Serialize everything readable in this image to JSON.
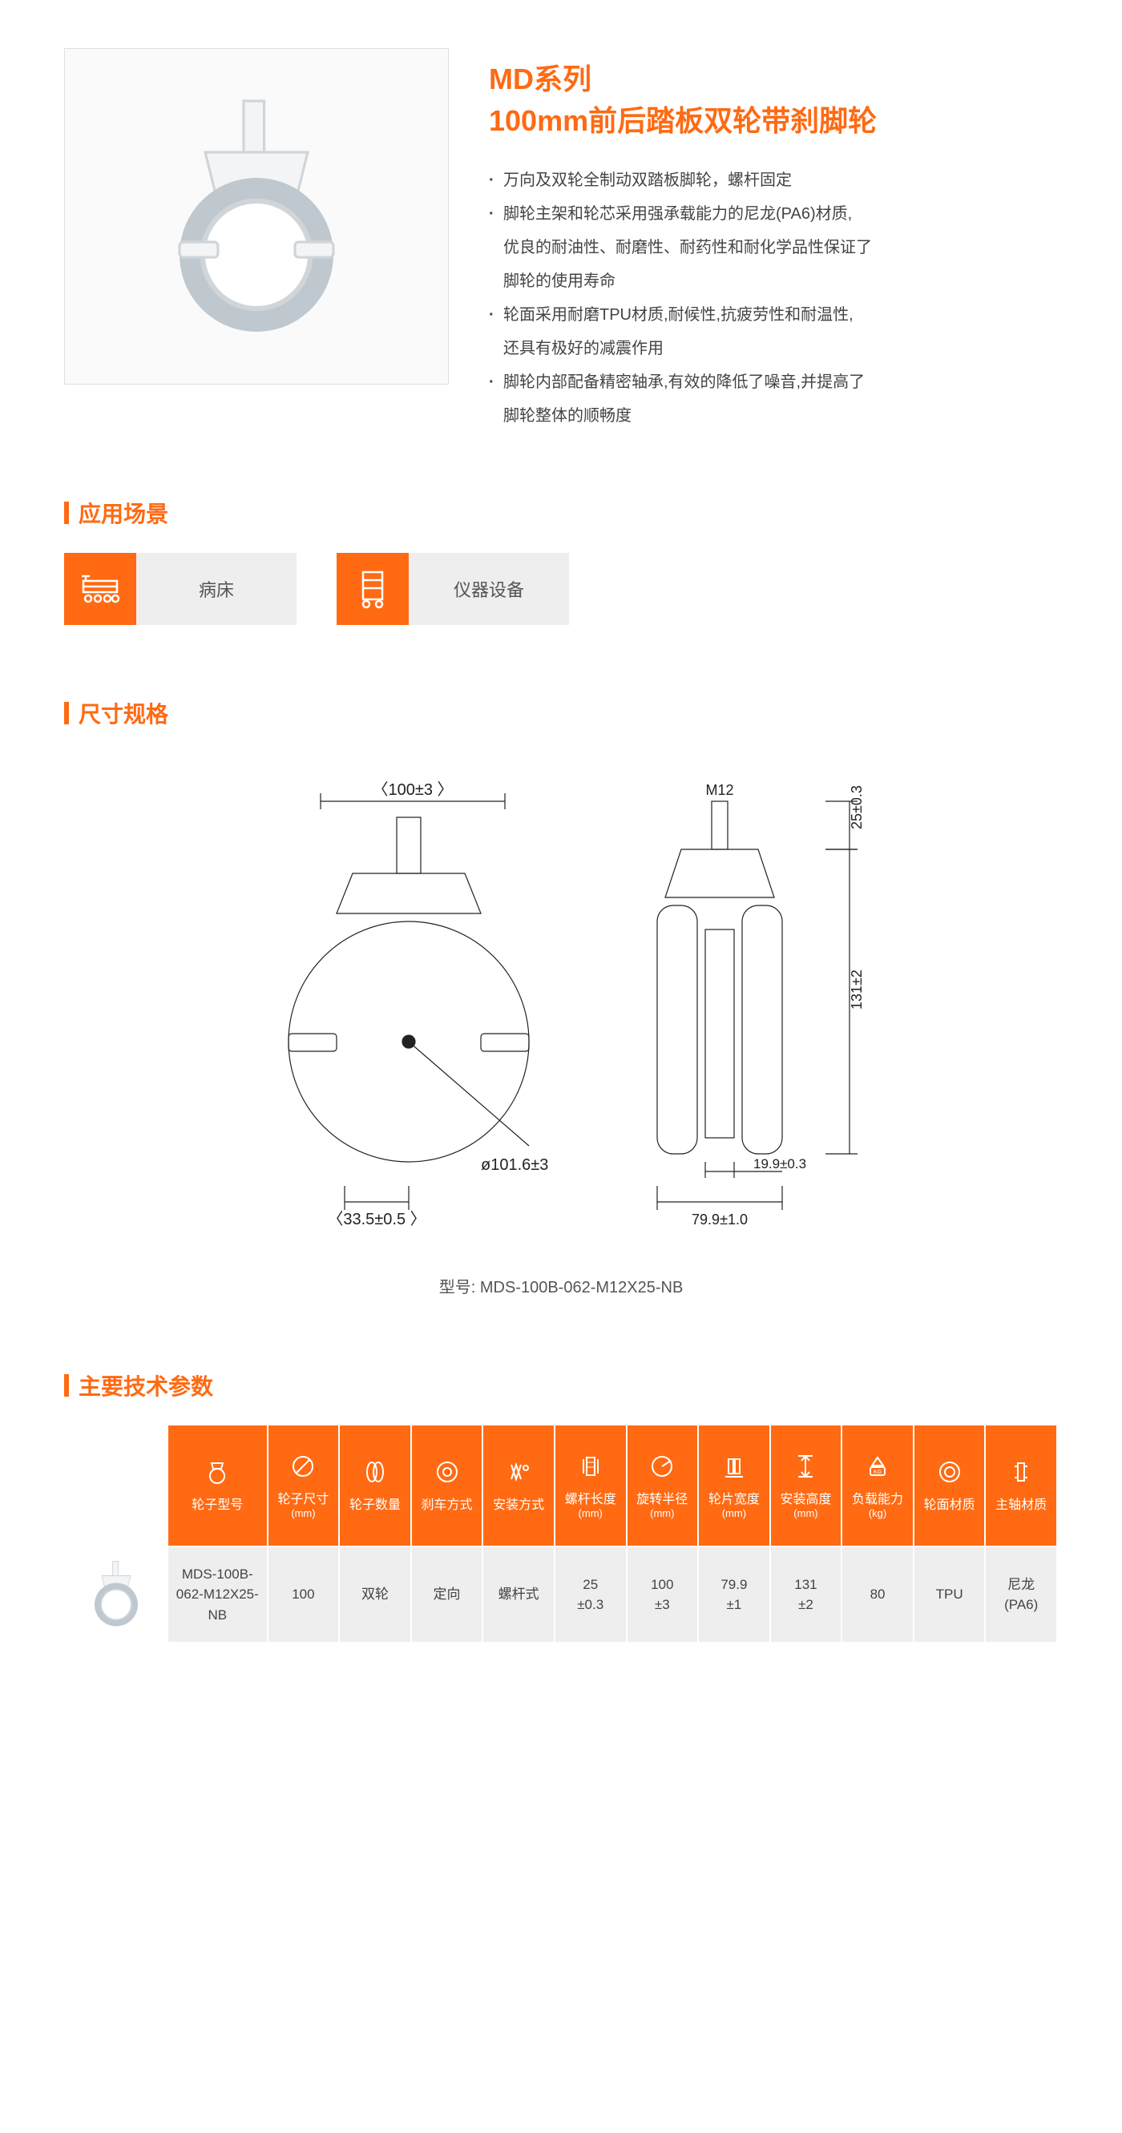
{
  "header": {
    "series": "MD系列",
    "name": "100mm前后踏板双轮带刹脚轮",
    "bullets": [
      {
        "main": "万向及双轮全制动双踏板脚轮，螺杆固定"
      },
      {
        "main": "脚轮主架和轮芯采用强承载能力的尼龙(PA6)材质,",
        "sub": [
          "优良的耐油性、耐磨性、耐药性和耐化学品性保证了",
          "脚轮的使用寿命"
        ]
      },
      {
        "main": "轮面采用耐磨TPU材质,耐候性,抗疲劳性和耐温性,",
        "sub": [
          "还具有极好的减震作用"
        ]
      },
      {
        "main": "脚轮内部配备精密轴承,有效的降低了噪音,并提高了",
        "sub": [
          "脚轮整体的顺畅度"
        ]
      }
    ]
  },
  "sections": {
    "apps": "应用场景",
    "dims": "尺寸规格",
    "specs": "主要技术参数"
  },
  "applications": [
    {
      "icon": "bed-icon",
      "label": "病床"
    },
    {
      "icon": "equipment-icon",
      "label": "仪器设备"
    }
  ],
  "dimensions": {
    "model_prefix": "型号:",
    "model": "MDS-100B-062-M12X25-NB",
    "labels": {
      "top_width": "〈100±3 〉",
      "thread": "M12",
      "thread_h": "25±0.3",
      "diameter": "ø101.6±3",
      "offset": "〈33.5±0.5 〉",
      "height": "131±2",
      "inner_w": "19.9±0.3",
      "outer_w": "79.9±1.0"
    },
    "colors": {
      "line": "#222222",
      "bg": "#ffffff"
    },
    "line_width": 1.2
  },
  "spec_table": {
    "header_bg": "#ff6a13",
    "cell_bg": "#eeeeee",
    "columns": [
      {
        "icon": "caster-icon",
        "label": "轮子型号",
        "sub": ""
      },
      {
        "icon": "diameter-icon",
        "label": "轮子尺寸",
        "sub": "(mm)"
      },
      {
        "icon": "quantity-icon",
        "label": "轮子数量",
        "sub": ""
      },
      {
        "icon": "brake-icon",
        "label": "刹车方式",
        "sub": ""
      },
      {
        "icon": "mount-icon",
        "label": "安装方式",
        "sub": ""
      },
      {
        "icon": "screw-icon",
        "label": "螺杆长度",
        "sub": "(mm)"
      },
      {
        "icon": "radius-icon",
        "label": "旋转半径",
        "sub": "(mm)"
      },
      {
        "icon": "width-icon",
        "label": "轮片宽度",
        "sub": "(mm)"
      },
      {
        "icon": "height-icon",
        "label": "安装高度",
        "sub": "(mm)"
      },
      {
        "icon": "load-icon",
        "label": "负载能力",
        "sub": "(kg)"
      },
      {
        "icon": "surface-icon",
        "label": "轮面材质",
        "sub": ""
      },
      {
        "icon": "shaft-icon",
        "label": "主轴材质",
        "sub": ""
      }
    ],
    "rows": [
      {
        "img": "caster-thumb",
        "cells": [
          "MDS-100B-062-M12X25-NB",
          "100",
          "双轮",
          "定向",
          "螺杆式",
          "25\n±0.3",
          "100\n±3",
          "79.9\n±1",
          "131\n±2",
          "80",
          "TPU",
          "尼龙\n(PA6)"
        ]
      }
    ]
  }
}
